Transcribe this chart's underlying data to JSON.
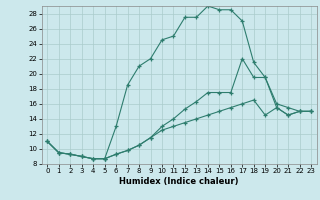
{
  "xlabel": "Humidex (Indice chaleur)",
  "bg_color": "#cce8ec",
  "line_color": "#2e7d6e",
  "grid_color": "#aacccc",
  "xlim": [
    -0.5,
    23.5
  ],
  "ylim": [
    8,
    29
  ],
  "xticks": [
    0,
    1,
    2,
    3,
    4,
    5,
    6,
    7,
    8,
    9,
    10,
    11,
    12,
    13,
    14,
    15,
    16,
    17,
    18,
    19,
    20,
    21,
    22,
    23
  ],
  "yticks": [
    8,
    10,
    12,
    14,
    16,
    18,
    20,
    22,
    24,
    26,
    28
  ],
  "line1_x": [
    0,
    1,
    2,
    3,
    4,
    5,
    6,
    7,
    8,
    9,
    10,
    11,
    12,
    13,
    14,
    15,
    16,
    17,
    18,
    19,
    20,
    21,
    22,
    23
  ],
  "line1_y": [
    11,
    9.5,
    9.3,
    9.0,
    8.7,
    8.7,
    13.0,
    18.5,
    21.0,
    22.0,
    24.5,
    25.0,
    27.5,
    27.5,
    29.0,
    28.5,
    28.5,
    27.0,
    21.5,
    19.5,
    15.5,
    14.5,
    15.0,
    15.0
  ],
  "line2_x": [
    0,
    1,
    2,
    3,
    4,
    5,
    6,
    7,
    8,
    9,
    10,
    11,
    12,
    13,
    14,
    15,
    16,
    17,
    18,
    19,
    20,
    21,
    22,
    23
  ],
  "line2_y": [
    11,
    9.5,
    9.3,
    9.0,
    8.7,
    8.7,
    9.3,
    9.8,
    10.5,
    11.5,
    13.0,
    14.0,
    15.3,
    16.3,
    17.5,
    17.5,
    17.5,
    22.0,
    19.5,
    19.5,
    16.0,
    15.5,
    15.0,
    15.0
  ],
  "line3_x": [
    0,
    1,
    2,
    3,
    4,
    5,
    6,
    7,
    8,
    9,
    10,
    11,
    12,
    13,
    14,
    15,
    16,
    17,
    18,
    19,
    20,
    21,
    22,
    23
  ],
  "line3_y": [
    11,
    9.5,
    9.3,
    9.0,
    8.7,
    8.7,
    9.3,
    9.8,
    10.5,
    11.5,
    12.5,
    13.0,
    13.5,
    14.0,
    14.5,
    15.0,
    15.5,
    16.0,
    16.5,
    14.5,
    15.5,
    14.5,
    15.0,
    15.0
  ]
}
